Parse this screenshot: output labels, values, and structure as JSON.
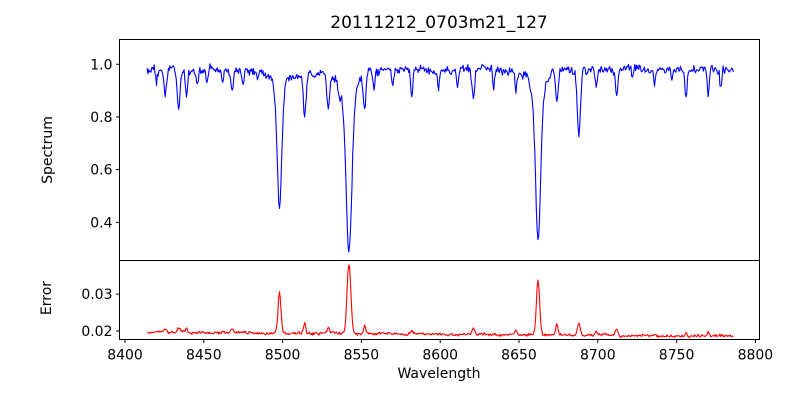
{
  "figure": {
    "title": "20111212_0703m21_127",
    "xlabel": "Wavelength",
    "background_color": "#ffffff",
    "text_color": "#000000",
    "xticks": [
      8400,
      8450,
      8500,
      8550,
      8600,
      8650,
      8700,
      8750,
      8800
    ],
    "xtick_labels": [
      "8400",
      "8450",
      "8500",
      "8550",
      "8600",
      "8650",
      "8700",
      "8750",
      "8800"
    ]
  },
  "chart_data": [
    {
      "type": "line",
      "id": "spectrum",
      "ylabel": "Spectrum",
      "line_color": "#0000ff",
      "xlim": [
        8396.5,
        8802.6
      ],
      "ylim": [
        0.255,
        1.094
      ],
      "yticks": [
        0.4,
        0.6,
        0.8,
        1.0
      ],
      "ytick_labels": [
        "0.4",
        "0.6",
        "0.8",
        "1.0"
      ],
      "x_start": 8414,
      "x_end": 8786,
      "x_step": 0.5,
      "continuum_level": 0.978,
      "noise_amp": 0.018,
      "slow_noise_amp": 0.008,
      "noise_seed": 1234,
      "features_sign": -1,
      "features": [
        {
          "center": 8420.0,
          "amp": 0.05,
          "sigma": 0.6
        },
        {
          "center": 8425.5,
          "amp": 0.11,
          "sigma": 0.8
        },
        {
          "center": 8434.0,
          "amp": 0.145,
          "sigma": 0.9
        },
        {
          "center": 8439.0,
          "amp": 0.1,
          "sigma": 0.7
        },
        {
          "center": 8446.0,
          "amp": 0.06,
          "sigma": 0.6
        },
        {
          "center": 8452.0,
          "amp": 0.05,
          "sigma": 0.6
        },
        {
          "center": 8462.0,
          "amp": 0.05,
          "sigma": 0.6
        },
        {
          "center": 8468.0,
          "amp": 0.08,
          "sigma": 0.8
        },
        {
          "center": 8475.0,
          "amp": 0.05,
          "sigma": 0.6
        },
        {
          "center": 8484.0,
          "amp": 0.04,
          "sigma": 0.6
        },
        {
          "center": 8498.0,
          "amp": 0.525,
          "sigma": 1.4,
          "gamma": 2.2
        },
        {
          "center": 8514.0,
          "amp": 0.17,
          "sigma": 0.8
        },
        {
          "center": 8529.0,
          "amp": 0.14,
          "sigma": 0.8
        },
        {
          "center": 8536.0,
          "amp": 0.06,
          "sigma": 0.6
        },
        {
          "center": 8542.1,
          "amp": 0.69,
          "sigma": 1.8,
          "gamma": 2.6
        },
        {
          "center": 8552.0,
          "amp": 0.14,
          "sigma": 0.8
        },
        {
          "center": 8558.0,
          "amp": 0.06,
          "sigma": 0.6
        },
        {
          "center": 8570.0,
          "amp": 0.07,
          "sigma": 0.6
        },
        {
          "center": 8582.0,
          "amp": 0.09,
          "sigma": 0.7
        },
        {
          "center": 8599.0,
          "amp": 0.06,
          "sigma": 0.6
        },
        {
          "center": 8611.0,
          "amp": 0.07,
          "sigma": 0.6
        },
        {
          "center": 8621.0,
          "amp": 0.11,
          "sigma": 0.8
        },
        {
          "center": 8634.0,
          "amp": 0.07,
          "sigma": 0.6
        },
        {
          "center": 8648.0,
          "amp": 0.07,
          "sigma": 0.6
        },
        {
          "center": 8662.1,
          "amp": 0.645,
          "sigma": 1.6,
          "gamma": 2.4
        },
        {
          "center": 8674.0,
          "amp": 0.13,
          "sigma": 0.8
        },
        {
          "center": 8688.0,
          "amp": 0.235,
          "sigma": 1.0
        },
        {
          "center": 8699.0,
          "amp": 0.07,
          "sigma": 0.6
        },
        {
          "center": 8712.0,
          "amp": 0.11,
          "sigma": 0.7
        },
        {
          "center": 8722.0,
          "amp": 0.05,
          "sigma": 0.6
        },
        {
          "center": 8736.0,
          "amp": 0.06,
          "sigma": 0.6
        },
        {
          "center": 8747.0,
          "amp": 0.05,
          "sigma": 0.6
        },
        {
          "center": 8756.0,
          "amp": 0.11,
          "sigma": 0.7
        },
        {
          "center": 8770.0,
          "amp": 0.1,
          "sigma": 0.7
        },
        {
          "center": 8778.0,
          "amp": 0.07,
          "sigma": 0.6
        }
      ]
    },
    {
      "type": "line",
      "id": "error",
      "ylabel": "Error",
      "line_color": "#ff0000",
      "xlim": [
        8396.5,
        8802.6
      ],
      "ylim": [
        0.0177,
        0.0391
      ],
      "yticks": [
        0.02,
        0.03
      ],
      "ytick_labels": [
        "0.02",
        "0.03"
      ],
      "show_xtick_labels": true,
      "x_start": 8414,
      "x_end": 8786,
      "x_step": 0.5,
      "baseline_start": 0.0197,
      "baseline_end": 0.0186,
      "noise_amp": 0.00045,
      "slow_noise_amp": 0.00018,
      "noise_seed": 99,
      "features_sign": 1,
      "features": [
        {
          "center": 8425.5,
          "amp": 0.0009,
          "sigma": 0.8
        },
        {
          "center": 8434.0,
          "amp": 0.0012,
          "sigma": 0.8
        },
        {
          "center": 8439.0,
          "amp": 0.0009,
          "sigma": 0.7
        },
        {
          "center": 8468.0,
          "amp": 0.0008,
          "sigma": 0.8
        },
        {
          "center": 8498.0,
          "amp": 0.0112,
          "sigma": 0.9
        },
        {
          "center": 8514.0,
          "amp": 0.003,
          "sigma": 0.7
        },
        {
          "center": 8529.0,
          "amp": 0.0013,
          "sigma": 0.7
        },
        {
          "center": 8542.1,
          "amp": 0.019,
          "sigma": 1.2
        },
        {
          "center": 8552.0,
          "amp": 0.0022,
          "sigma": 0.7
        },
        {
          "center": 8582.0,
          "amp": 0.0009,
          "sigma": 0.6
        },
        {
          "center": 8621.0,
          "amp": 0.0018,
          "sigma": 0.7
        },
        {
          "center": 8648.0,
          "amp": 0.0014,
          "sigma": 0.6
        },
        {
          "center": 8662.1,
          "amp": 0.015,
          "sigma": 1.0
        },
        {
          "center": 8674.0,
          "amp": 0.0028,
          "sigma": 0.7
        },
        {
          "center": 8688.0,
          "amp": 0.0032,
          "sigma": 0.8
        },
        {
          "center": 8699.0,
          "amp": 0.001,
          "sigma": 0.6
        },
        {
          "center": 8712.0,
          "amp": 0.0018,
          "sigma": 0.7
        },
        {
          "center": 8756.0,
          "amp": 0.0013,
          "sigma": 0.6
        },
        {
          "center": 8770.0,
          "amp": 0.001,
          "sigma": 0.6
        }
      ]
    }
  ]
}
